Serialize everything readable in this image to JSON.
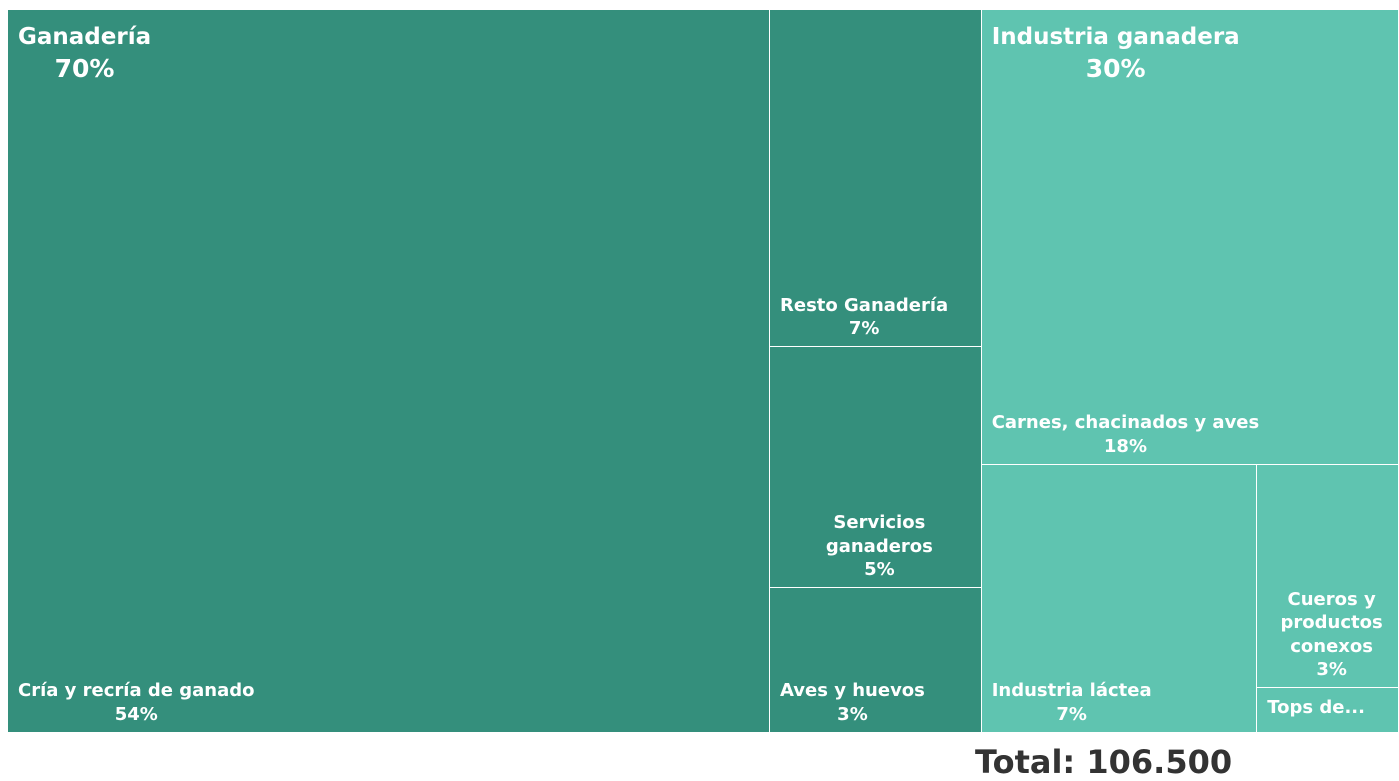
{
  "chart_data": {
    "type": "treemap",
    "total_label": "Total: 106.500",
    "groups": [
      {
        "name": "Ganadería",
        "value": 70,
        "value_label": "70%",
        "color": "#348f7c",
        "children": [
          {
            "name": "Cría y recría de ganado",
            "value": 54,
            "value_label": "54%"
          },
          {
            "name": "Resto Ganadería",
            "value": 7,
            "value_label": "7%"
          },
          {
            "name": "Servicios ganaderos",
            "value": 5,
            "value_label": "5%"
          },
          {
            "name": "Aves y huevos",
            "value": 3,
            "value_label": "3%"
          }
        ]
      },
      {
        "name": "Industria ganadera",
        "value": 30,
        "value_label": "30%",
        "color": "#5fc4b0",
        "children": [
          {
            "name": "Carnes, chacinados y aves",
            "value": 18,
            "value_label": "18%"
          },
          {
            "name": "Industria láctea",
            "value": 7,
            "value_label": "7%"
          },
          {
            "name": "Cueros y productos conexos",
            "value": 3,
            "value_label": "3%"
          },
          {
            "name": "Tops de...",
            "value": 0.6
          }
        ]
      }
    ]
  }
}
